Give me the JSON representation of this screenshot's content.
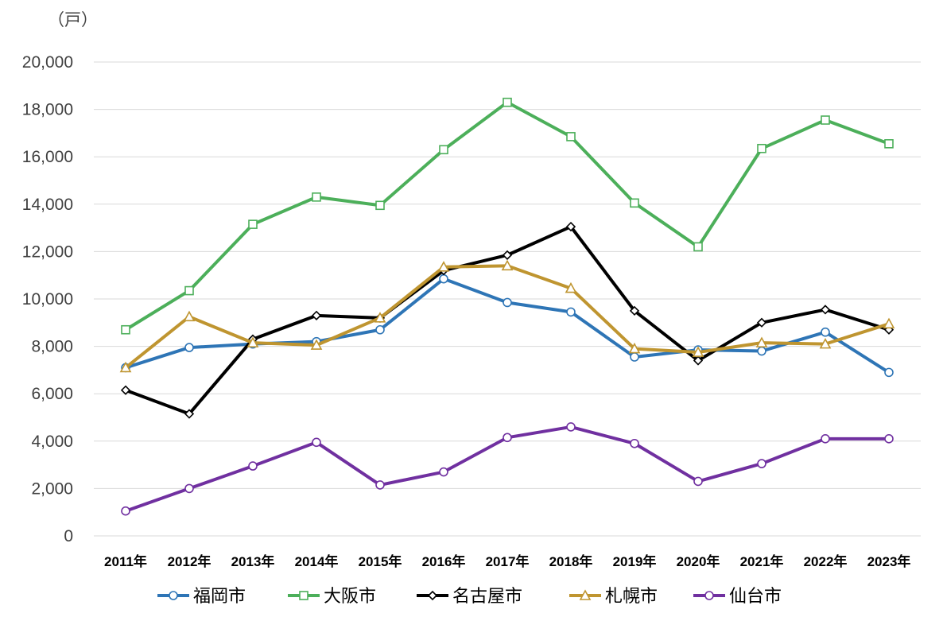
{
  "chart_data": {
    "type": "line",
    "unit_label": "（戸）",
    "categories": [
      "2011年",
      "2012年",
      "2013年",
      "2014年",
      "2015年",
      "2016年",
      "2017年",
      "2018年",
      "2019年",
      "2020年",
      "2021年",
      "2022年",
      "2023年"
    ],
    "ylim": [
      0,
      20000
    ],
    "yticks": [
      "0",
      "2,000",
      "4,000",
      "6,000",
      "8,000",
      "10,000",
      "12,000",
      "14,000",
      "16,000",
      "18,000",
      "20,000"
    ],
    "ytick_values": [
      0,
      2000,
      4000,
      6000,
      8000,
      10000,
      12000,
      14000,
      16000,
      18000,
      20000
    ],
    "grid": true,
    "legend_position": "bottom",
    "series": [
      {
        "name": "福岡市",
        "color": "#2e75b6",
        "marker": "circle",
        "values": [
          7100,
          7950,
          8100,
          8200,
          8700,
          10850,
          9850,
          9450,
          7550,
          7850,
          7800,
          8600,
          6900
        ]
      },
      {
        "name": "大阪市",
        "color": "#4caf5a",
        "marker": "square",
        "values": [
          8700,
          10350,
          13150,
          14300,
          13950,
          16300,
          18300,
          16850,
          14050,
          12200,
          16350,
          17550,
          16550
        ]
      },
      {
        "name": "名古屋市",
        "color": "#000000",
        "marker": "diamond",
        "values": [
          6150,
          5150,
          8300,
          9300,
          9200,
          11200,
          11850,
          13050,
          9500,
          7400,
          9000,
          9550,
          8700
        ]
      },
      {
        "name": "札幌市",
        "color": "#bf9530",
        "marker": "triangle",
        "values": [
          7100,
          9250,
          8150,
          8050,
          9200,
          11350,
          11400,
          10450,
          7900,
          7750,
          8150,
          8100,
          8950
        ]
      },
      {
        "name": "仙台市",
        "color": "#7030a0",
        "marker": "circle",
        "values": [
          1050,
          2000,
          2950,
          3950,
          2150,
          2700,
          4150,
          4600,
          3900,
          2300,
          3050,
          4100,
          4100
        ]
      }
    ]
  }
}
